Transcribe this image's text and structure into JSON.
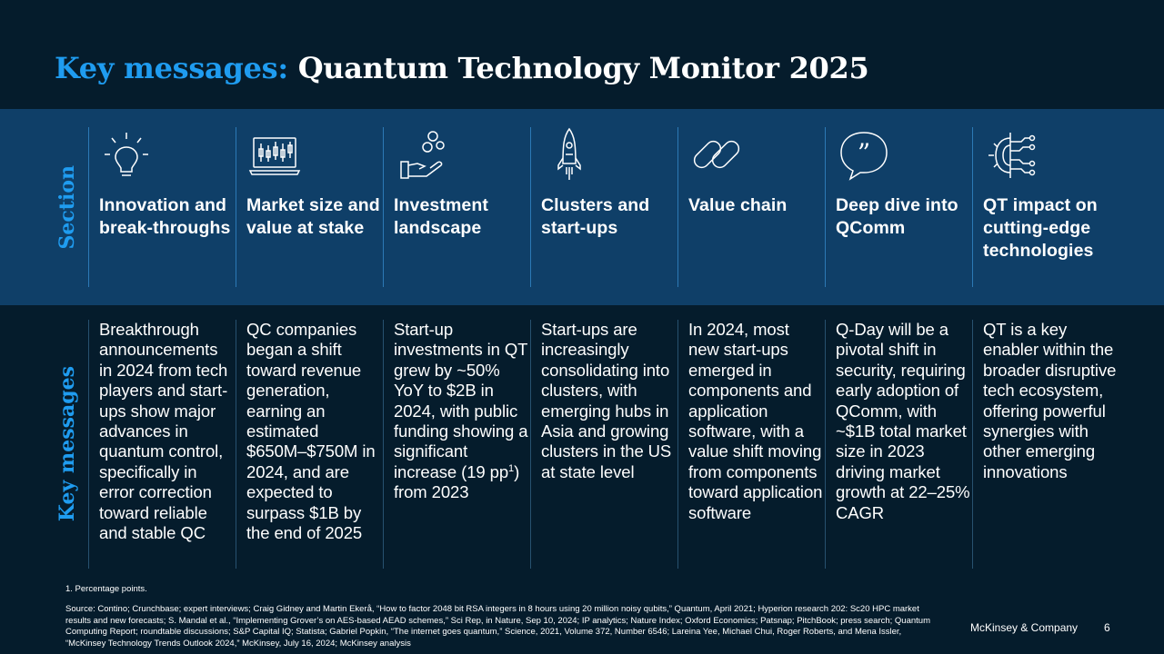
{
  "title": {
    "accent": "Key messages:",
    "rest": "Quantum Technology Monitor 2025"
  },
  "row_labels": {
    "section": "Section",
    "key_messages": "Key messages"
  },
  "columns": [
    {
      "icon": "lightbulb-icon",
      "title": "Innovation and break-throughs",
      "message": "Breakthrough announcements in 2024 from tech players and start-ups show major advances in quantum control, specifically in error correction toward reliable and stable QC"
    },
    {
      "icon": "laptop-chart-icon",
      "title": "Market size and value at stake",
      "message": "QC companies began a shift toward revenue generation, earning an estimated $650M–$750M in 2024, and are expected to surpass $1B by the end of 2025"
    },
    {
      "icon": "hand-coins-icon",
      "title": "Investment landscape",
      "message_pre": "Start-up investments in QT grew by ~50% YoY to $2B in 2024, with public funding showing a significant increase (19 pp",
      "message_sup": "1",
      "message_post": ") from 2023"
    },
    {
      "icon": "rocket-icon",
      "title": "Clusters and start-ups",
      "message": "Start-ups are increasingly consolidating into clusters, with emerging hubs in Asia and growing clusters in the US at state level"
    },
    {
      "icon": "chain-link-icon",
      "title": "Value chain",
      "message": "In 2024, most new start-ups emerged in components and application software, with a value shift moving from components toward application software"
    },
    {
      "icon": "quote-bubble-icon",
      "title": "Deep dive into QComm",
      "message": "Q-Day will be a pivotal shift in security, requiring early adoption of QComm, with ~$1B total market size in 2023 driving market growth at 22–25% CAGR"
    },
    {
      "icon": "circuit-gear-icon",
      "title": "QT impact on cutting-edge technologies",
      "message": "QT is a key enabler within the broader disruptive tech ecosystem, offering powerful synergies with other emerging innovations"
    }
  ],
  "footnote": "1. Percentage points.",
  "source": "Source: Contino; Crunchbase; expert interviews; Craig Gidney and Martin Ekerå, “How to factor 2048 bit RSA integers in 8 hours using 20 million noisy qubits,” Quantum, April 2021; Hyperion research 202: Sc20 HPC market results and new forecasts; S. Mandal et al., “Implementing Grover’s on AES-based AEAD schemes,” Sci Rep, in Nature, Sep 10, 2024; IP analytics; Nature Index; Oxford Economics; Patsnap; PitchBook; press search; Quantum Computing Report; roundtable discussions; S&P Capital IQ; Statista; Gabriel Popkin, “The internet goes quantum,” Science, 2021, Volume 372, Number 6546; Lareina Yee, Michael Chui, Roger Roberts, and Mena Issler, “McKinsey Technology Trends Outlook 2024,” McKinsey, July 16, 2024; McKinsey analysis",
  "brand": "McKinsey & Company",
  "page_number": "6",
  "colors": {
    "background": "#051C2C",
    "band": "#0F3F68",
    "accent": "#1F9CF0"
  }
}
